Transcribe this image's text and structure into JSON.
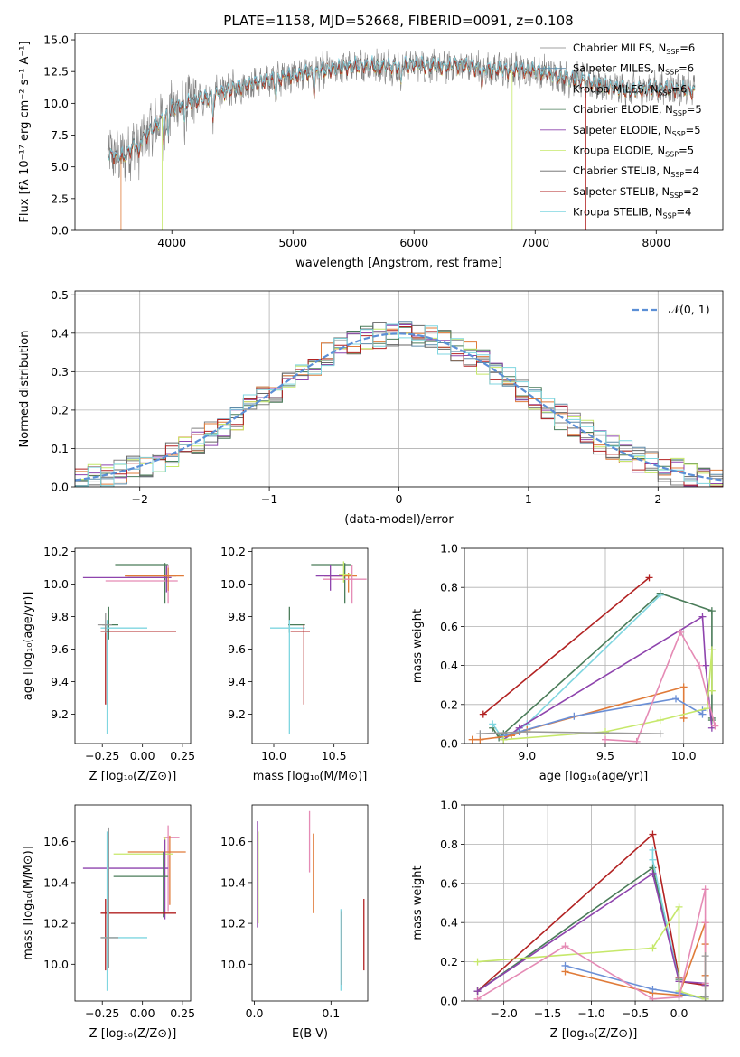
{
  "figure_title": "PLATE=1158, MJD=52668, FIBERID=0091, z=0.108",
  "colors": {
    "Chabrier MILES": "#808080",
    "Salpeter MILES": "#5d8aa8",
    "Kroupa MILES": "#e07b39",
    "Chabrier ELODIE": "#4a7c59",
    "Salpeter ELODIE": "#8e44ad",
    "Kroupa ELODIE": "#c6e86a",
    "Chabrier STELIB": "#666666",
    "Salpeter STELIB": "#b22222",
    "Kroupa STELIB": "#7fd6e0",
    "series_palette": [
      "#b22222",
      "#4a7c59",
      "#7fd6e0",
      "#8e44ad",
      "#e07b39",
      "#6a8fd6",
      "#c6e86a",
      "#e58bb5",
      "#999999"
    ],
    "gaussian": "#5b8fd6"
  },
  "chart_data": [
    {
      "id": "spectrum",
      "type": "line",
      "xlabel": "wavelength [Angstrom, rest frame]",
      "ylabel": "Flux [fλ 10⁻¹⁷ erg cm⁻² s⁻¹ A⁻¹]",
      "xlim": [
        3200,
        8550
      ],
      "ylim": [
        0,
        15.5
      ],
      "xticks": [
        4000,
        5000,
        6000,
        7000,
        8000
      ],
      "yticks": [
        0.0,
        2.5,
        5.0,
        7.5,
        10.0,
        12.5,
        15.0
      ],
      "ytick_labels": [
        "0.0",
        "2.5",
        "5.0",
        "7.5",
        "10.0",
        "12.5",
        "15.0"
      ],
      "continuum_x": [
        3450,
        3600,
        3700,
        3800,
        3900,
        4000,
        4100,
        4200,
        4400,
        4600,
        4800,
        5000,
        5200,
        5400,
        5600,
        5800,
        6000,
        6200,
        6400,
        6600,
        6800,
        7000,
        7200,
        7400,
        7600,
        7800,
        8000,
        8200,
        8300
      ],
      "continuum_y": [
        6.0,
        5.8,
        6.8,
        7.6,
        8.6,
        9.6,
        10.0,
        10.2,
        10.8,
        11.4,
        11.8,
        12.2,
        12.5,
        12.8,
        13.0,
        12.9,
        13.1,
        12.9,
        13.0,
        12.7,
        12.6,
        12.6,
        12.1,
        11.8,
        11.3,
        11.0,
        11.2,
        11.1,
        11.0
      ],
      "legend": [
        {
          "label": "Chabrier MILES, N",
          "sub": "SSP",
          "suffix": "=6"
        },
        {
          "label": "Salpeter MILES, N",
          "sub": "SSP",
          "suffix": "=6"
        },
        {
          "label": "Kroupa MILES, N",
          "sub": "SSP",
          "suffix": "=6"
        },
        {
          "label": "Chabrier ELODIE, N",
          "sub": "SSP",
          "suffix": "=5"
        },
        {
          "label": "Salpeter ELODIE, N",
          "sub": "SSP",
          "suffix": "=5"
        },
        {
          "label": "Kroupa ELODIE, N",
          "sub": "SSP",
          "suffix": "=5"
        },
        {
          "label": "Chabrier STELIB, N",
          "sub": "SSP",
          "suffix": "=4"
        },
        {
          "label": "Salpeter STELIB, N",
          "sub": "SSP",
          "suffix": "=2"
        },
        {
          "label": "Kroupa STELIB, N",
          "sub": "SSP",
          "suffix": "=4"
        }
      ]
    },
    {
      "id": "residuals",
      "type": "histogram",
      "xlabel": "(data-model)/error",
      "ylabel": "Normed distribution",
      "xlim": [
        -2.5,
        2.5
      ],
      "ylim": [
        0,
        0.51
      ],
      "xticks": [
        -2,
        -1,
        0,
        1,
        2
      ],
      "xtick_labels": [
        "−2",
        "−1",
        "0",
        "1",
        "2"
      ],
      "yticks": [
        0.0,
        0.1,
        0.2,
        0.3,
        0.4,
        0.5
      ],
      "ytick_labels": [
        "0.0",
        "0.1",
        "0.2",
        "0.3",
        "0.4",
        "0.5"
      ],
      "legend_label": "𝒩(0, 1)",
      "bin_width": 0.1,
      "grid": true
    },
    {
      "id": "age_vs_Z",
      "type": "errorbar",
      "xlabel": "Z [log₁₀(Z/Z⊙)]",
      "ylabel": "age  [log₁₀(age/yr)]",
      "xlim": [
        -0.42,
        0.3
      ],
      "ylim": [
        9.02,
        10.22
      ],
      "xticks": [
        -0.25,
        0.0,
        0.25
      ],
      "xtick_labels": [
        "−0.25",
        "0.00",
        "0.25"
      ],
      "yticks": [
        9.2,
        9.4,
        9.6,
        9.8,
        10.0,
        10.2
      ],
      "ytick_labels": [
        "9.2",
        "9.4",
        "9.6",
        "9.8",
        "10.0",
        "10.2"
      ],
      "points": [
        {
          "x": 0.15,
          "y": 10.05,
          "xerr": [
            0.24,
            0.06
          ],
          "yerr": [
            0.03,
            0.07
          ],
          "c": 8
        },
        {
          "x": 0.14,
          "y": 10.12,
          "xerr": [
            0.31,
            0.02
          ],
          "yerr": [
            0.24,
            0.01
          ],
          "c": 1
        },
        {
          "x": 0.16,
          "y": 10.02,
          "xerr": [
            0.39,
            0.06
          ],
          "yerr": [
            0.14,
            0.1
          ],
          "c": 7
        },
        {
          "x": 0.15,
          "y": 10.04,
          "xerr": [
            0.52,
            0.03
          ],
          "yerr": [
            0.09,
            0.07
          ],
          "c": 3
        },
        {
          "x": 0.16,
          "y": 10.05,
          "xerr": [
            0.27,
            0.1
          ],
          "yerr": [
            0.09,
            0.05
          ],
          "c": 4
        },
        {
          "x": -0.21,
          "y": 9.75,
          "xerr": [
            0.04,
            0.06
          ],
          "yerr": [
            0.09,
            0.11
          ],
          "c": 1
        },
        {
          "x": -0.22,
          "y": 9.73,
          "xerr": [
            0.04,
            0.25
          ],
          "yerr": [
            0.65,
            0.05
          ],
          "c": 2
        },
        {
          "x": -0.23,
          "y": 9.71,
          "xerr": [
            0.03,
            0.44
          ],
          "yerr": [
            0.45,
            0.04
          ],
          "c": 0
        },
        {
          "x": -0.23,
          "y": 9.75,
          "xerr": [
            0.05,
            0.04
          ],
          "yerr": [
            0.05,
            0.07
          ],
          "c": 8
        }
      ]
    },
    {
      "id": "age_vs_mass",
      "type": "errorbar",
      "xlabel": "mass [log₁₀(M/M⊙)]",
      "ylabel": "",
      "xlim": [
        9.82,
        10.78
      ],
      "ylim": [
        9.02,
        10.22
      ],
      "xticks": [
        10.0,
        10.5
      ],
      "xtick_labels": [
        "10.0",
        "10.5"
      ],
      "yticks": [
        9.2,
        9.4,
        9.6,
        9.8,
        10.0,
        10.2
      ],
      "ytick_labels": [
        "9.2",
        "9.4",
        "9.6",
        "9.8",
        "10.0",
        "10.2"
      ],
      "points": [
        {
          "x": 10.59,
          "y": 10.12,
          "xerr": [
            0.28,
            0.05
          ],
          "yerr": [
            0.24,
            0.01
          ],
          "c": 1
        },
        {
          "x": 10.62,
          "y": 10.05,
          "xerr": [
            0.2,
            0.07
          ],
          "yerr": [
            0.1,
            0.02
          ],
          "c": 4
        },
        {
          "x": 10.65,
          "y": 10.03,
          "xerr": [
            0.24,
            0.12
          ],
          "yerr": [
            0.15,
            0.09
          ],
          "c": 7
        },
        {
          "x": 10.47,
          "y": 10.05,
          "xerr": [
            0.12,
            0.1
          ],
          "yerr": [
            0.09,
            0.07
          ],
          "c": 3
        },
        {
          "x": 10.58,
          "y": 10.06,
          "xerr": [
            0.04,
            0.07
          ],
          "yerr": [
            0.05,
            0.08
          ],
          "c": 6
        },
        {
          "x": 10.13,
          "y": 9.75,
          "xerr": [
            0.01,
            0.13
          ],
          "yerr": [
            0.05,
            0.11
          ],
          "c": 1
        },
        {
          "x": 10.13,
          "y": 9.73,
          "xerr": [
            0.16,
            0.13
          ],
          "yerr": [
            0.65,
            0.05
          ],
          "c": 2
        },
        {
          "x": 10.25,
          "y": 9.71,
          "xerr": [
            0.11,
            0.05
          ],
          "yerr": [
            0.45,
            0.04
          ],
          "c": 0
        }
      ]
    },
    {
      "id": "weight_vs_age",
      "type": "line",
      "xlabel": "age  [log₁₀(age/yr)]",
      "ylabel": "mass weight",
      "xlim": [
        8.6,
        10.25
      ],
      "ylim": [
        0,
        1.0
      ],
      "xticks": [
        9.0,
        9.5,
        10.0
      ],
      "xtick_labels": [
        "9.0",
        "9.5",
        "10.0"
      ],
      "yticks": [
        0.0,
        0.2,
        0.4,
        0.6,
        0.8,
        1.0
      ],
      "ytick_labels": [
        "0.0",
        "0.2",
        "0.4",
        "0.6",
        "0.8",
        "1.0"
      ],
      "grid": true,
      "series": [
        {
          "c": 0,
          "x": [
            8.72,
            9.78
          ],
          "y": [
            0.15,
            0.85
          ]
        },
        {
          "c": 1,
          "x": [
            8.78,
            8.82,
            8.85,
            9.85,
            10.18,
            10.18,
            10.18
          ],
          "y": [
            0.08,
            0.03,
            0.05,
            0.77,
            0.68,
            0.13,
            0.12
          ]
        },
        {
          "c": 2,
          "x": [
            8.78,
            8.85,
            9.0,
            9.85
          ],
          "y": [
            0.1,
            0.02,
            0.1,
            0.76
          ]
        },
        {
          "c": 3,
          "x": [
            8.85,
            8.95,
            10.12,
            10.14,
            10.18
          ],
          "y": [
            0.02,
            0.08,
            0.65,
            0.4,
            0.08
          ]
        },
        {
          "c": 4,
          "x": [
            8.65,
            8.7,
            8.9,
            9.0,
            10.0,
            10.0
          ],
          "y": [
            0.02,
            0.02,
            0.04,
            0.07,
            0.29,
            0.13
          ]
        },
        {
          "c": 5,
          "x": [
            8.85,
            8.95,
            9.3,
            9.95,
            10.12,
            10.12
          ],
          "y": [
            0.04,
            0.06,
            0.14,
            0.23,
            0.15,
            0.17
          ]
        },
        {
          "c": 6,
          "x": [
            8.85,
            9.5,
            9.85,
            10.15,
            10.18,
            10.18
          ],
          "y": [
            0.02,
            0.06,
            0.12,
            0.18,
            0.48,
            0.27
          ]
        },
        {
          "c": 7,
          "x": [
            9.5,
            9.7,
            9.98,
            10.1,
            10.2
          ],
          "y": [
            0.02,
            0.01,
            0.57,
            0.4,
            0.09
          ]
        },
        {
          "c": 8,
          "x": [
            8.7,
            9.0,
            9.85
          ],
          "y": [
            0.05,
            0.06,
            0.05
          ]
        }
      ]
    },
    {
      "id": "mass_vs_Z",
      "type": "errorbar",
      "xlabel": "Z [log₁₀(Z/Z⊙)]",
      "ylabel": "mass [log₁₀(M/M⊙)]",
      "xlim": [
        -0.42,
        0.3
      ],
      "ylim": [
        9.82,
        10.78
      ],
      "xticks": [
        -0.25,
        0.0,
        0.25
      ],
      "xtick_labels": [
        "−0.25",
        "0.00",
        "0.25"
      ],
      "yticks": [
        10.0,
        10.2,
        10.4,
        10.6
      ],
      "ytick_labels": [
        "10.0",
        "10.2",
        "10.4",
        "10.6"
      ],
      "points": [
        {
          "x": 0.16,
          "y": 10.62,
          "xerr": [
            0.03,
            0.07
          ],
          "yerr": [
            0.36,
            0.06
          ],
          "c": 7
        },
        {
          "x": 0.17,
          "y": 10.55,
          "xerr": [
            0.26,
            0.1
          ],
          "yerr": [
            0.26,
            0.08
          ],
          "c": 4
        },
        {
          "x": 0.14,
          "y": 10.54,
          "xerr": [
            0.32,
            0.05
          ],
          "yerr": [
            0.06,
            0.08
          ],
          "c": 6
        },
        {
          "x": 0.14,
          "y": 10.47,
          "xerr": [
            0.51,
            0.02
          ],
          "yerr": [
            0.25,
            0.14
          ],
          "c": 3
        },
        {
          "x": 0.13,
          "y": 10.43,
          "xerr": [
            0.31,
            0.03
          ],
          "yerr": [
            0.2,
            0.12
          ],
          "c": 1
        },
        {
          "x": -0.23,
          "y": 10.25,
          "xerr": [
            0.03,
            0.44
          ],
          "yerr": [
            0.28,
            0.07
          ],
          "c": 0
        },
        {
          "x": -0.22,
          "y": 10.13,
          "xerr": [
            0.04,
            0.25
          ],
          "yerr": [
            0.26,
            0.52
          ],
          "c": 2
        },
        {
          "x": -0.21,
          "y": 10.13,
          "xerr": [
            0.05,
            0.06
          ],
          "yerr": [
            0.15,
            0.54
          ],
          "c": 8
        }
      ]
    },
    {
      "id": "mass_vs_ebv",
      "type": "errorbar",
      "xlabel": "E(B-V)",
      "ylabel": "",
      "xlim": [
        -0.003,
        0.148
      ],
      "ylim": [
        9.82,
        10.78
      ],
      "xticks": [
        0.0,
        0.1
      ],
      "xtick_labels": [
        "0.0",
        "0.1"
      ],
      "yticks": [
        10.0,
        10.2,
        10.4,
        10.6
      ],
      "ytick_labels": [
        "10.0",
        "10.2",
        "10.4",
        "10.6"
      ],
      "points": [
        {
          "x": 0.004,
          "y": 10.4,
          "yerr": [
            0.22,
            0.3
          ],
          "c": 3
        },
        {
          "x": 0.005,
          "y": 10.4,
          "yerr": [
            0.2,
            0.25
          ],
          "c": 6
        },
        {
          "x": 0.072,
          "y": 10.6,
          "yerr": [
            0.15,
            0.15
          ],
          "c": 7
        },
        {
          "x": 0.077,
          "y": 10.45,
          "yerr": [
            0.2,
            0.19
          ],
          "c": 4
        },
        {
          "x": 0.113,
          "y": 10.13,
          "yerr": [
            0.26,
            0.14
          ],
          "c": 2
        },
        {
          "x": 0.114,
          "y": 10.1,
          "yerr": [
            0.2,
            0.16
          ],
          "c": 8
        },
        {
          "x": 0.143,
          "y": 10.15,
          "yerr": [
            0.18,
            0.17
          ],
          "c": 0
        }
      ]
    },
    {
      "id": "weight_vs_Z",
      "type": "line",
      "xlabel": "Z [log₁₀(Z/Z⊙)]",
      "ylabel": "mass weight",
      "xlim": [
        -2.45,
        0.5
      ],
      "ylim": [
        0,
        1.0
      ],
      "xticks": [
        -2.0,
        -1.5,
        -1.0,
        -0.5,
        0.0
      ],
      "xtick_labels": [
        "−2.0",
        "−1.5",
        "−1.0",
        "−0.5",
        "0.0"
      ],
      "yticks": [
        0.0,
        0.2,
        0.4,
        0.6,
        0.8,
        1.0
      ],
      "ytick_labels": [
        "0.0",
        "0.2",
        "0.4",
        "0.6",
        "0.8",
        "1.0"
      ],
      "grid": true,
      "series": [
        {
          "c": 0,
          "x": [
            -2.3,
            -0.3,
            0.0,
            0.0,
            0.3
          ],
          "y": [
            0.05,
            0.85,
            0.12,
            0.1,
            0.08
          ]
        },
        {
          "c": 1,
          "x": [
            -2.3,
            -0.3,
            0.0,
            0.0,
            0.3
          ],
          "y": [
            0.05,
            0.68,
            0.11,
            0.03,
            0.02
          ]
        },
        {
          "c": 2,
          "x": [
            -0.3,
            -0.3,
            0.0,
            0.0
          ],
          "y": [
            0.77,
            0.72,
            0.1,
            0.02
          ]
        },
        {
          "c": 3,
          "x": [
            -2.3,
            -0.3,
            0.0,
            0.3,
            0.3
          ],
          "y": [
            0.05,
            0.65,
            0.1,
            0.09,
            0.08
          ]
        },
        {
          "c": 4,
          "x": [
            -1.3,
            -0.3,
            0.0,
            0.3,
            0.3,
            0.3
          ],
          "y": [
            0.15,
            0.04,
            0.03,
            0.4,
            0.29,
            0.13
          ]
        },
        {
          "c": 5,
          "x": [
            -1.3,
            -0.3,
            0.0,
            0.3
          ],
          "y": [
            0.18,
            0.06,
            0.04,
            0.01
          ]
        },
        {
          "c": 6,
          "x": [
            -2.3,
            -0.3,
            0.0,
            0.0,
            0.3
          ],
          "y": [
            0.2,
            0.27,
            0.48,
            0.05,
            0.01
          ]
        },
        {
          "c": 7,
          "x": [
            -2.3,
            -1.3,
            -0.3,
            0.0,
            0.3,
            0.3,
            0.3
          ],
          "y": [
            0.01,
            0.28,
            0.01,
            0.02,
            0.57,
            0.4,
            0.09
          ]
        },
        {
          "c": 8,
          "x": [
            0.3,
            0.3
          ],
          "y": [
            0.23,
            0.02
          ]
        }
      ]
    }
  ]
}
